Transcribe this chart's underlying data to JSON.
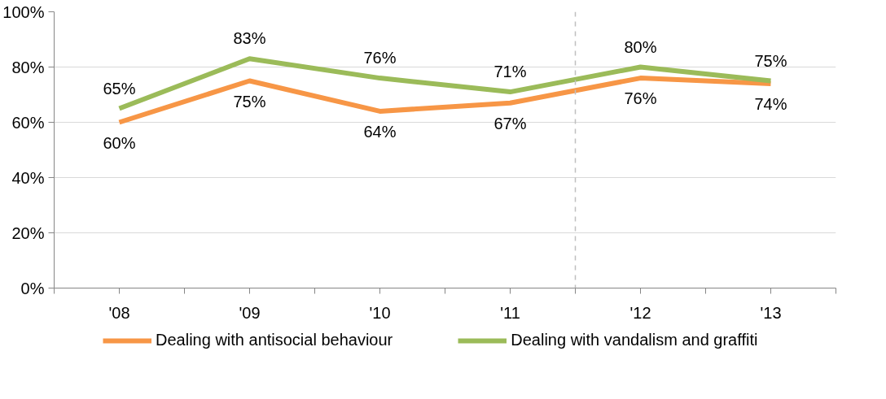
{
  "chart_data": {
    "type": "line",
    "x": [
      2008,
      2009,
      2010,
      2011,
      2012,
      2013
    ],
    "xlim": [
      2007.5,
      2013.5
    ],
    "xticks": [
      {
        "value": 2007.5,
        "label": null
      },
      {
        "value": 2008,
        "label": "'08"
      },
      {
        "value": 2008.5,
        "label": null
      },
      {
        "value": 2009,
        "label": "'09"
      },
      {
        "value": 2009.5,
        "label": null
      },
      {
        "value": 2010,
        "label": "'10"
      },
      {
        "value": 2010.5,
        "label": null
      },
      {
        "value": 2011,
        "label": "'11"
      },
      {
        "value": 2011.5,
        "label": null
      },
      {
        "value": 2012,
        "label": "'12"
      },
      {
        "value": 2012.5,
        "label": null
      },
      {
        "value": 2013,
        "label": "'13"
      },
      {
        "value": 2013.5,
        "label": null
      }
    ],
    "ylim": [
      0,
      100
    ],
    "yticks": [
      {
        "value": 0,
        "label": "0%"
      },
      {
        "value": 20,
        "label": "20%"
      },
      {
        "value": 40,
        "label": "40%"
      },
      {
        "value": 60,
        "label": "60%"
      },
      {
        "value": 80,
        "label": "80%"
      },
      {
        "value": 100,
        "label": "100%"
      }
    ],
    "series": [
      {
        "name": "Dealing with antisocial behaviour",
        "color": "#f79646",
        "values": [
          60,
          75,
          64,
          67,
          76,
          74
        ],
        "value_labels": [
          "60%",
          "75%",
          "64%",
          "67%",
          "76%",
          "74%"
        ]
      },
      {
        "name": "Dealing with vandalism and graffiti",
        "color": "#9bbb59",
        "values": [
          65,
          83,
          76,
          71,
          80,
          75
        ],
        "value_labels": [
          "65%",
          "83%",
          "76%",
          "71%",
          "80%",
          "75%"
        ]
      }
    ],
    "ref_lines": [
      {
        "axis": "x",
        "value": 2011.5,
        "color": "#bfbfbf",
        "line_style": "dashed"
      }
    ],
    "grid": "y",
    "legend": "bottom",
    "marker": "none",
    "line_style": "solid"
  }
}
